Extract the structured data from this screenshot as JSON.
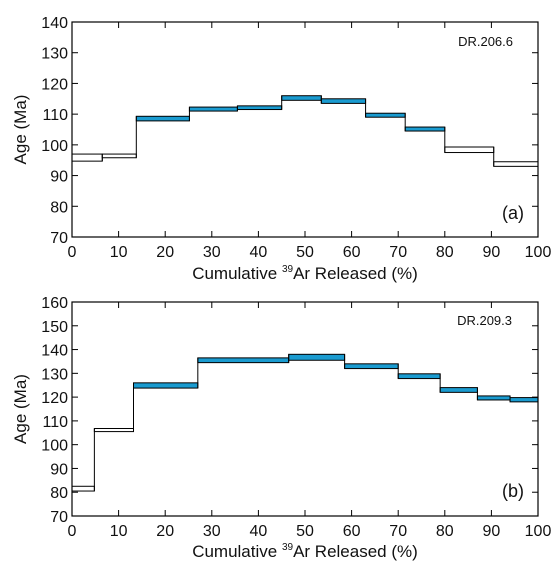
{
  "chart_data": [
    {
      "type": "step",
      "sample": "DR.206.6",
      "panel": "(a)",
      "xlabel": {
        "pre": "Cumulative ",
        "sup": "39",
        "post": "Ar Released (%)"
      },
      "ylabel": "Age (Ma)",
      "xlim": [
        0,
        100
      ],
      "ylim": [
        70,
        140
      ],
      "xticks": [
        0,
        10,
        20,
        30,
        40,
        50,
        60,
        70,
        80,
        90,
        100
      ],
      "yticks": [
        70,
        80,
        90,
        100,
        110,
        120,
        130,
        140
      ],
      "plateau_color": "#1a9bd0",
      "steps": [
        {
          "x0": 0,
          "x1": 6.5,
          "lo": 94.7,
          "hi": 97.0,
          "plateau": false
        },
        {
          "x0": 6.5,
          "x1": 13.8,
          "lo": 95.8,
          "hi": 97.0,
          "plateau": false
        },
        {
          "x0": 13.8,
          "x1": 25.2,
          "lo": 107.8,
          "hi": 109.3,
          "plateau": true
        },
        {
          "x0": 25.2,
          "x1": 35.5,
          "lo": 111.0,
          "hi": 112.3,
          "plateau": true
        },
        {
          "x0": 35.5,
          "x1": 45.0,
          "lo": 111.5,
          "hi": 112.7,
          "plateau": true
        },
        {
          "x0": 45.0,
          "x1": 53.5,
          "lo": 114.5,
          "hi": 116.0,
          "plateau": true
        },
        {
          "x0": 53.5,
          "x1": 63.0,
          "lo": 113.5,
          "hi": 115.0,
          "plateau": true
        },
        {
          "x0": 63.0,
          "x1": 71.5,
          "lo": 109.0,
          "hi": 110.3,
          "plateau": true
        },
        {
          "x0": 71.5,
          "x1": 80.0,
          "lo": 104.5,
          "hi": 105.8,
          "plateau": true
        },
        {
          "x0": 80.0,
          "x1": 90.5,
          "lo": 97.5,
          "hi": 99.3,
          "plateau": false
        },
        {
          "x0": 90.5,
          "x1": 100,
          "lo": 93.0,
          "hi": 94.5,
          "plateau": false
        }
      ]
    },
    {
      "type": "step",
      "sample": "DR.209.3",
      "panel": "(b)",
      "xlabel": {
        "pre": "Cumulative ",
        "sup": "39",
        "post": "Ar Released (%)"
      },
      "ylabel": "Age (Ma)",
      "xlim": [
        0,
        100
      ],
      "ylim": [
        70,
        160
      ],
      "xticks": [
        0,
        10,
        20,
        30,
        40,
        50,
        60,
        70,
        80,
        90,
        100
      ],
      "yticks": [
        70,
        80,
        90,
        100,
        110,
        120,
        130,
        140,
        150,
        160
      ],
      "plateau_color": "#1a9bd0",
      "steps": [
        {
          "x0": 0,
          "x1": 4.8,
          "lo": 80.5,
          "hi": 82.5,
          "plateau": false
        },
        {
          "x0": 4.8,
          "x1": 13.2,
          "lo": 105.5,
          "hi": 106.8,
          "plateau": false
        },
        {
          "x0": 13.2,
          "x1": 27.0,
          "lo": 123.8,
          "hi": 126.0,
          "plateau": true
        },
        {
          "x0": 27.0,
          "x1": 46.5,
          "lo": 134.5,
          "hi": 136.5,
          "plateau": true
        },
        {
          "x0": 46.5,
          "x1": 58.5,
          "lo": 135.5,
          "hi": 138.0,
          "plateau": true
        },
        {
          "x0": 58.5,
          "x1": 70.0,
          "lo": 132.0,
          "hi": 134.0,
          "plateau": true
        },
        {
          "x0": 70.0,
          "x1": 79.0,
          "lo": 127.8,
          "hi": 129.8,
          "plateau": true
        },
        {
          "x0": 79.0,
          "x1": 87.0,
          "lo": 122.0,
          "hi": 124.0,
          "plateau": true
        },
        {
          "x0": 87.0,
          "x1": 94.0,
          "lo": 118.8,
          "hi": 120.5,
          "plateau": true
        },
        {
          "x0": 94.0,
          "x1": 100,
          "lo": 118.0,
          "hi": 119.8,
          "plateau": true
        }
      ]
    }
  ]
}
